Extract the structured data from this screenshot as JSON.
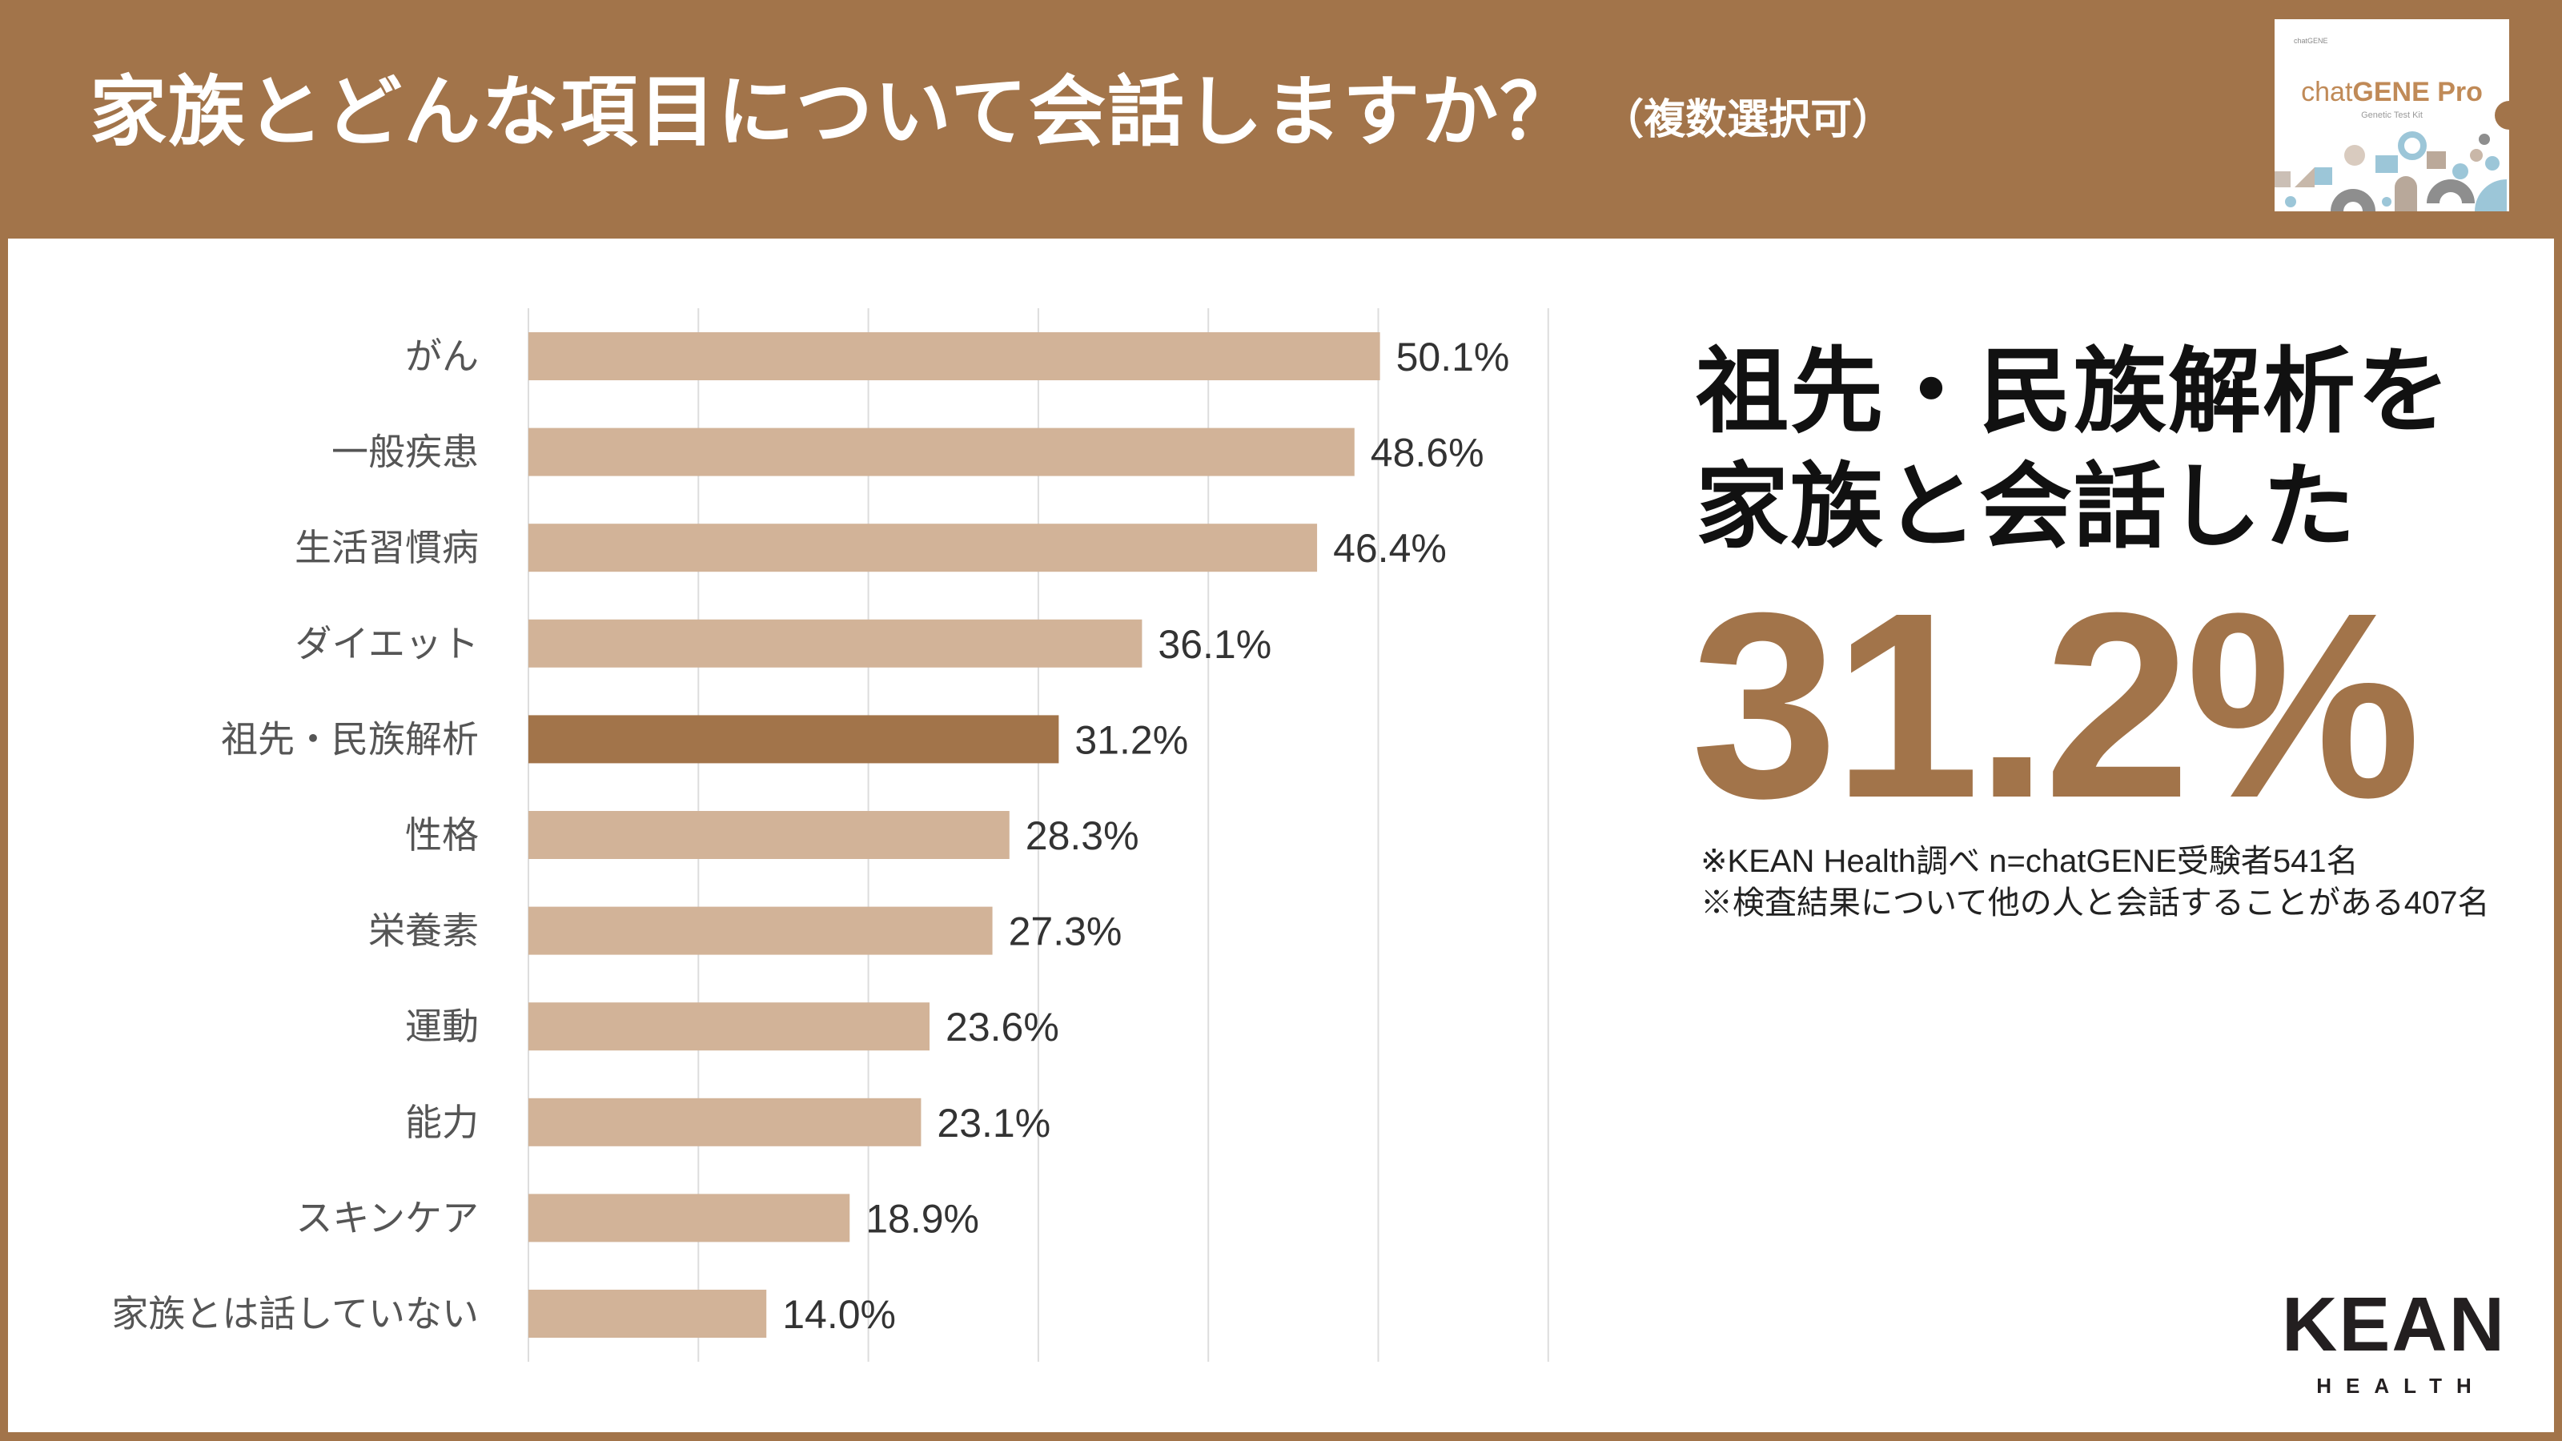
{
  "header": {
    "title": "家族とどんな項目について会話しますか？",
    "subtitle": "（複数選択可）"
  },
  "product_box": {
    "small_logo": "chatGENE",
    "brand_light": "chat",
    "brand_bold": "GENE Pro",
    "subtitle": "Genetic Test Kit"
  },
  "highlight": {
    "line1": "祖先・民族解析を",
    "line2": "家族と会話した",
    "value": "31.2%"
  },
  "notes": [
    "※KEAN Health調べ n=chatGENE受験者541名",
    "※検査結果について他の人と会話することがある407名"
  ],
  "logo": {
    "main": "KEAN",
    "sub": "HEALTH"
  },
  "colors": {
    "brand": "#A2744A",
    "bar": "#D2B398",
    "bar_highlight": "#A2744A",
    "grid": "#DDDDDD",
    "label": "#555555",
    "value_label": "#333333"
  },
  "chart_data": {
    "type": "bar",
    "orientation": "horizontal",
    "title": "家族とどんな項目について会話しますか？（複数選択可）",
    "xlabel": "",
    "ylabel": "",
    "categories": [
      "がん",
      "一般疾患",
      "生活習慣病",
      "ダイエット",
      "祖先・民族解析",
      "性格",
      "栄養素",
      "運動",
      "能力",
      "スキンケア",
      "家族とは話していない"
    ],
    "values": [
      50.1,
      48.6,
      46.4,
      36.1,
      31.2,
      28.3,
      27.3,
      23.6,
      23.1,
      18.9,
      14.0
    ],
    "value_labels": [
      "50.1%",
      "48.6%",
      "46.4%",
      "36.1%",
      "31.2%",
      "28.3%",
      "27.3%",
      "23.6%",
      "23.1%",
      "18.9%",
      "14.0%"
    ],
    "highlighted_category": "祖先・民族解析",
    "unit": "%",
    "xlim": [
      0,
      60
    ],
    "grid_step": 10,
    "grid": true,
    "x_tick_labels_visible": false,
    "legend": "none"
  }
}
